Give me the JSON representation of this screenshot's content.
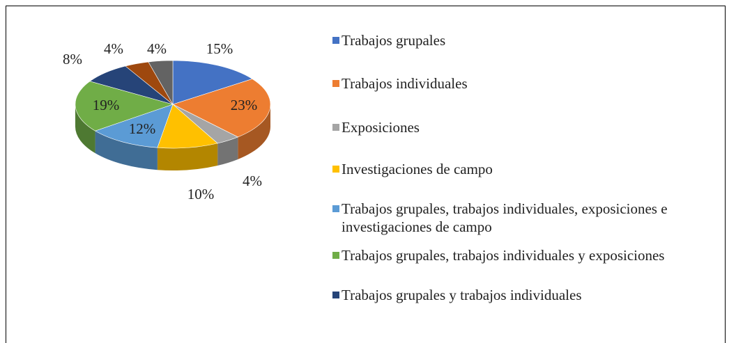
{
  "chart_data": {
    "type": "pie",
    "categories": [
      "Trabajos grupales",
      "Trabajos individuales",
      "Exposiciones",
      "Investigaciones de campo",
      "Trabajos grupales, trabajos individuales, exposiciones e investigaciones de campo",
      "Trabajos grupales, trabajos individuales y exposiciones",
      "Trabajos grupales y trabajos individuales",
      null,
      null
    ],
    "values": [
      15,
      23,
      4,
      10,
      12,
      19,
      8,
      4,
      4
    ],
    "value_labels": [
      "15%",
      "23%",
      "4%",
      "10%",
      "12%",
      "19%",
      "8%",
      "4%",
      "4%"
    ],
    "colors": [
      "#4472c4",
      "#ed7d31",
      "#a5a5a5",
      "#ffc000",
      "#5b9bd5",
      "#70ad47",
      "#264478",
      "#9e480e",
      "#636363"
    ],
    "legend": "right"
  }
}
